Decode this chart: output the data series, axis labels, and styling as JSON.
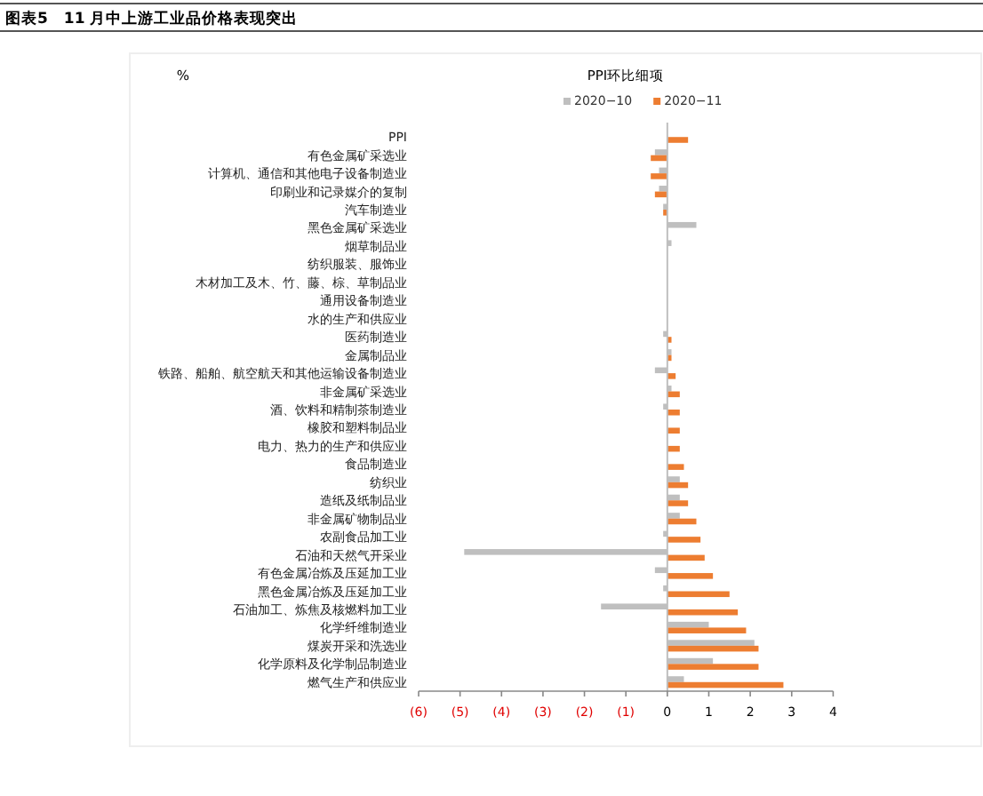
{
  "chart_data": {
    "type": "bar",
    "orientation": "horizontal",
    "title": "图表5　11 月中上游工业品价格表现突出",
    "subtitle": "PPI环比细项",
    "xlabel": "%",
    "categories": [
      "PPI",
      "有色金属矿采选业",
      "计算机、通信和其他电子设备制造业",
      "印刷业和记录媒介的复制",
      "汽车制造业",
      "黑色金属矿采选业",
      "烟草制品业",
      "纺织服装、服饰业",
      "木材加工及木、竹、藤、棕、草制品业",
      "通用设备制造业",
      "水的生产和供应业",
      "医药制造业",
      "金属制品业",
      "铁路、船舶、航空航天和其他运输设备制造业",
      "非金属矿采选业",
      "酒、饮料和精制茶制造业",
      "橡胶和塑料制品业",
      "电力、热力的生产和供应业",
      "食品制造业",
      "纺织业",
      "造纸及纸制品业",
      "非金属矿物制品业",
      "农副食品加工业",
      "石油和天然气开采业",
      "有色金属冶炼及压延加工业",
      "黑色金属冶炼及压延加工业",
      "石油加工、炼焦及核燃料加工业",
      "化学纤维制造业",
      "煤炭开采和洗选业",
      "化学原料及化学制品制造业",
      "燃气生产和供应业"
    ],
    "series": [
      {
        "name": "2020−10",
        "color": "#bfbfbf",
        "values": [
          0,
          -0.3,
          -0.2,
          -0.2,
          -0.1,
          0.7,
          0.1,
          0,
          0,
          0,
          0,
          -0.1,
          0.1,
          -0.3,
          0.1,
          -0.1,
          0,
          0,
          0,
          0.3,
          0.3,
          0.3,
          -0.1,
          -4.9,
          -0.3,
          -0.1,
          -1.6,
          1.0,
          2.1,
          1.1,
          0.4
        ]
      },
      {
        "name": "2020−11",
        "color": "#ed7d31",
        "values": [
          0.5,
          -0.4,
          -0.4,
          -0.3,
          -0.1,
          0,
          0,
          0,
          0,
          0,
          0,
          0.1,
          0.1,
          0.2,
          0.3,
          0.3,
          0.3,
          0.3,
          0.4,
          0.5,
          0.5,
          0.7,
          0.8,
          0.9,
          1.1,
          1.5,
          1.7,
          1.9,
          2.2,
          2.2,
          2.8
        ]
      }
    ],
    "xlim": [
      -6,
      4
    ],
    "xticks": [
      {
        "value": -6,
        "label": "(6)"
      },
      {
        "value": -5,
        "label": "(5)"
      },
      {
        "value": -4,
        "label": "(4)"
      },
      {
        "value": -3,
        "label": "(3)"
      },
      {
        "value": -2,
        "label": "(2)"
      },
      {
        "value": -1,
        "label": "(1)"
      },
      0,
      1,
      2,
      3,
      4
    ],
    "legend": "top"
  }
}
